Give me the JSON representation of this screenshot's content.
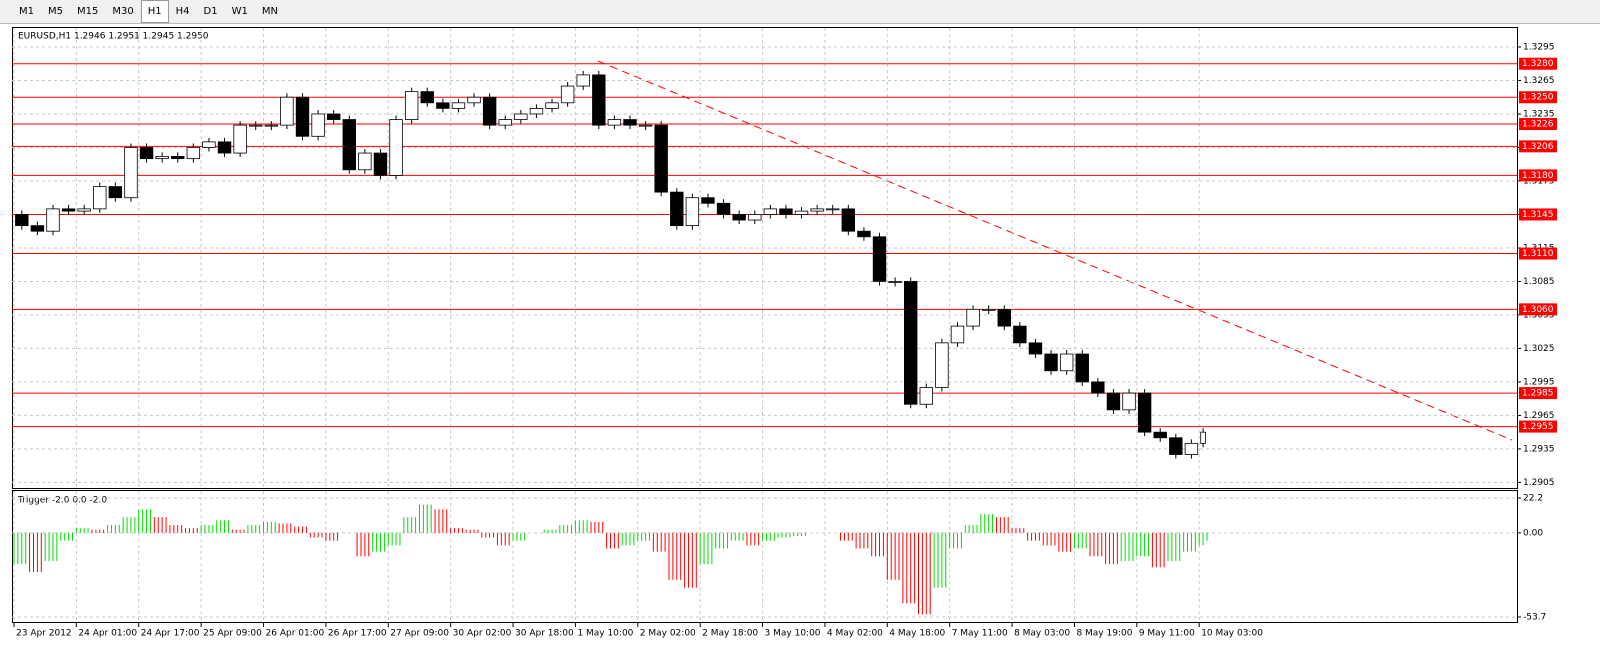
{
  "toolbar": {
    "timeframes": [
      "M1",
      "M5",
      "M15",
      "M30",
      "H1",
      "H4",
      "D1",
      "W1",
      "MN"
    ],
    "selected_index": 4
  },
  "chart_data": [
    {
      "type": "price",
      "title": "EURUSD,H1  1.2946 1.2951 1.2945 1.2950",
      "x": [
        0,
        4,
        8,
        12,
        16,
        20,
        24,
        28,
        32,
        36,
        40,
        44,
        48,
        52,
        56,
        60,
        64,
        68,
        72,
        76,
        80,
        84,
        88,
        92,
        96,
        100,
        104,
        108,
        112,
        116,
        120,
        124,
        128,
        132,
        136,
        140,
        144,
        148,
        152,
        156,
        160,
        164,
        168,
        172,
        176,
        180,
        184,
        188,
        192,
        196,
        200,
        204,
        208,
        212,
        216,
        220,
        224,
        228,
        232,
        236,
        240,
        244,
        248,
        252,
        256,
        260,
        264,
        268,
        272,
        276,
        280,
        284,
        288,
        292,
        296,
        300,
        304,
        306
      ],
      "values": [
        1.3145,
        1.3135,
        1.313,
        1.315,
        1.3148,
        1.315,
        1.317,
        1.316,
        1.3205,
        1.3195,
        1.3197,
        1.3195,
        1.3205,
        1.321,
        1.32,
        1.3225,
        1.3225,
        1.3225,
        1.325,
        1.3215,
        1.3235,
        1.323,
        1.3185,
        1.32,
        1.318,
        1.323,
        1.3255,
        1.3245,
        1.324,
        1.3245,
        1.325,
        1.3225,
        1.323,
        1.3235,
        1.324,
        1.3245,
        1.326,
        1.327,
        1.3225,
        1.323,
        1.3225,
        1.3225,
        1.3165,
        1.3135,
        1.316,
        1.3155,
        1.3145,
        1.314,
        1.3145,
        1.315,
        1.3145,
        1.3148,
        1.315,
        1.315,
        1.313,
        1.3125,
        1.3085,
        1.3085,
        1.2975,
        1.299,
        1.303,
        1.3045,
        1.306,
        1.306,
        1.3045,
        1.303,
        1.302,
        1.3005,
        1.302,
        1.2995,
        1.2985,
        1.297,
        1.2985,
        1.295,
        1.2945,
        1.293,
        1.294,
        1.295
      ],
      "xlim": [
        0,
        385
      ],
      "ylim": [
        1.29,
        1.3312
      ],
      "yticks": [
        1.3295,
        1.3265,
        1.3235,
        1.3205,
        1.3175,
        1.3145,
        1.3115,
        1.3085,
        1.3055,
        1.3025,
        1.2995,
        1.2965,
        1.2935,
        1.2905
      ],
      "xticks": [
        {
          "value": 0,
          "label": "23 Apr 2012"
        },
        {
          "value": 16,
          "label": "24 Apr 01:00"
        },
        {
          "value": 32,
          "label": "24 Apr 17:00"
        },
        {
          "value": 48,
          "label": "25 Apr 09:00"
        },
        {
          "value": 64,
          "label": "26 Apr 01:00"
        },
        {
          "value": 80,
          "label": "26 Apr 17:00"
        },
        {
          "value": 96,
          "label": "27 Apr 09:00"
        },
        {
          "value": 112,
          "label": "30 Apr 02:00"
        },
        {
          "value": 128,
          "label": "30 Apr 18:00"
        },
        {
          "value": 144,
          "label": "1 May 10:00"
        },
        {
          "value": 160,
          "label": "2 May 02:00"
        },
        {
          "value": 176,
          "label": "2 May 18:00"
        },
        {
          "value": 192,
          "label": "3 May 10:00"
        },
        {
          "value": 208,
          "label": "4 May 02:00"
        },
        {
          "value": 224,
          "label": "4 May 18:00"
        },
        {
          "value": 240,
          "label": "7 May 11:00"
        },
        {
          "value": 256,
          "label": "8 May 03:00"
        },
        {
          "value": 272,
          "label": "8 May 19:00"
        },
        {
          "value": 288,
          "label": "9 May 11:00"
        },
        {
          "value": 304,
          "label": "10 May 03:00"
        }
      ],
      "levels": [
        {
          "value": 1.328,
          "label": "1.3280"
        },
        {
          "value": 1.325,
          "label": "1.3250"
        },
        {
          "value": 1.3226,
          "label": "1.3226"
        },
        {
          "value": 1.3206,
          "label": "1.3206"
        },
        {
          "value": 1.318,
          "label": "1.3180"
        },
        {
          "value": 1.3145,
          "label": "1.3145"
        },
        {
          "value": 1.311,
          "label": "1.3110"
        },
        {
          "value": 1.306,
          "label": "1.3060"
        },
        {
          "value": 1.2985,
          "label": "1.2985"
        },
        {
          "value": 1.2955,
          "label": "1.2955"
        }
      ],
      "level_color": "#ff0000",
      "grid": true
    },
    {
      "type": "histogram",
      "title": "Trigger -2.0 0.0 -2.0",
      "values": [
        -20,
        -25,
        -18,
        -5,
        3,
        2,
        5,
        10,
        15,
        10,
        5,
        3,
        5,
        8,
        2,
        5,
        7,
        6,
        4,
        -3,
        -5,
        0,
        -15,
        -12,
        -8,
        10,
        18,
        15,
        3,
        2,
        -3,
        -8,
        -5,
        0,
        2,
        5,
        8,
        7,
        -10,
        -8,
        -5,
        -12,
        -30,
        -35,
        -20,
        -10,
        -5,
        -8,
        -5,
        -3,
        -2,
        0,
        0,
        -5,
        -10,
        -15,
        -30,
        -45,
        -52,
        -35,
        -10,
        5,
        12,
        10,
        3,
        -5,
        -8,
        -12,
        -10,
        -15,
        -20,
        -18,
        -15,
        -22,
        -18,
        -12,
        -8,
        -5
      ],
      "ylim": [
        -56.9,
        26.7
      ],
      "yticks": [
        22.2,
        {
          "value": 0,
          "label": "0.00"
        },
        -53.7
      ],
      "up_color": "#00dd00",
      "down_color": "#ff0000",
      "grid": true
    }
  ]
}
